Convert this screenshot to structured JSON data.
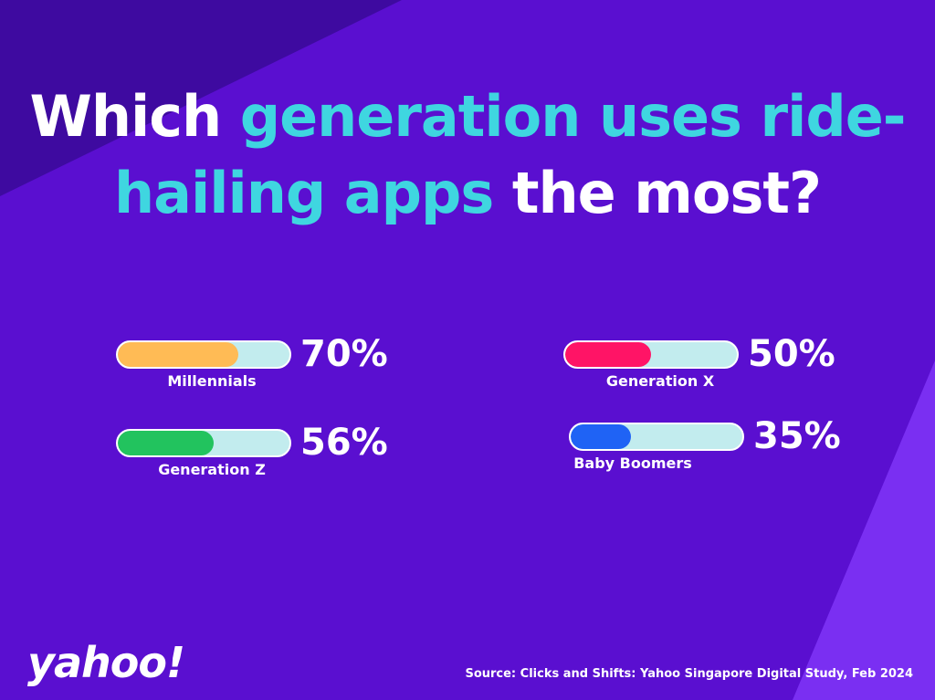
{
  "title": {
    "part1": "Which ",
    "part2": "generation uses ride-",
    "part3": "hailing apps",
    "part4": " the most?"
  },
  "colors": {
    "background": "#5a0fd0",
    "background_dark": "#3e0aa0",
    "background_light": "#7a2ff2",
    "highlight": "#3fd6e0",
    "track": "#c2ecee"
  },
  "chart_data": {
    "type": "bar",
    "categories": [
      "Millennials",
      "Generation Z",
      "Generation X",
      "Baby Boomers"
    ],
    "values": [
      70,
      56,
      50,
      35
    ],
    "value_labels": [
      "70%",
      "56%",
      "50%",
      "35%"
    ],
    "bar_colors": [
      "#ffbb55",
      "#22c35e",
      "#ff1466",
      "#1f63f5"
    ],
    "ylim": [
      0,
      100
    ]
  },
  "footer": {
    "logo": "yahoo!",
    "source": "Source: Clicks and Shifts: Yahoo Singapore Digital Study, Feb 2024"
  }
}
